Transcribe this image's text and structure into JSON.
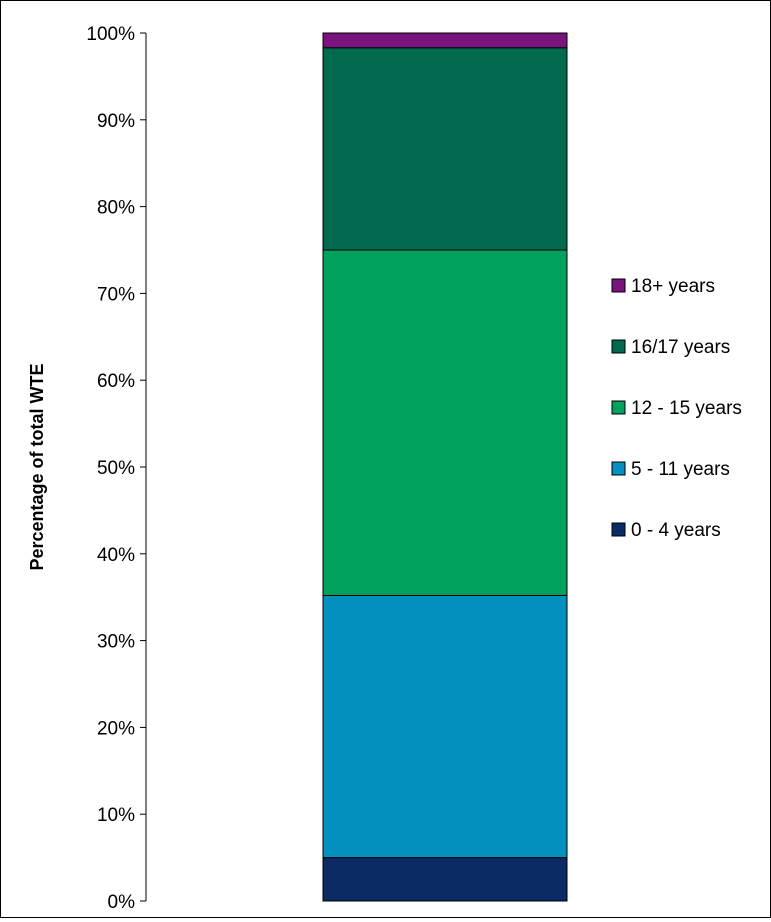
{
  "chart_data": {
    "type": "bar",
    "stacked": true,
    "categories": [
      ""
    ],
    "ylabel": "Percentage of total WTE",
    "xlabel": "",
    "ylim": [
      0,
      100
    ],
    "y_ticks": [
      "0%",
      "10%",
      "20%",
      "30%",
      "40%",
      "50%",
      "60%",
      "70%",
      "80%",
      "90%",
      "100%"
    ],
    "grid": false,
    "legend_position": "right",
    "series": [
      {
        "name": "0 - 4 years",
        "values": [
          5.0
        ],
        "color": "#0c2a64"
      },
      {
        "name": "5 - 11 years",
        "values": [
          30.2
        ],
        "color": "#0591c0"
      },
      {
        "name": "12 - 15 years",
        "values": [
          39.8
        ],
        "color": "#00a15c"
      },
      {
        "name": "16/17 years",
        "values": [
          23.3
        ],
        "color": "#016a4e"
      },
      {
        "name": "18+ years",
        "values": [
          1.7
        ],
        "color": "#7a137e"
      }
    ],
    "legend_order": [
      "18+ years",
      "16/17 years",
      "12 - 15 years",
      "5 - 11 years",
      "0 - 4 years"
    ]
  }
}
